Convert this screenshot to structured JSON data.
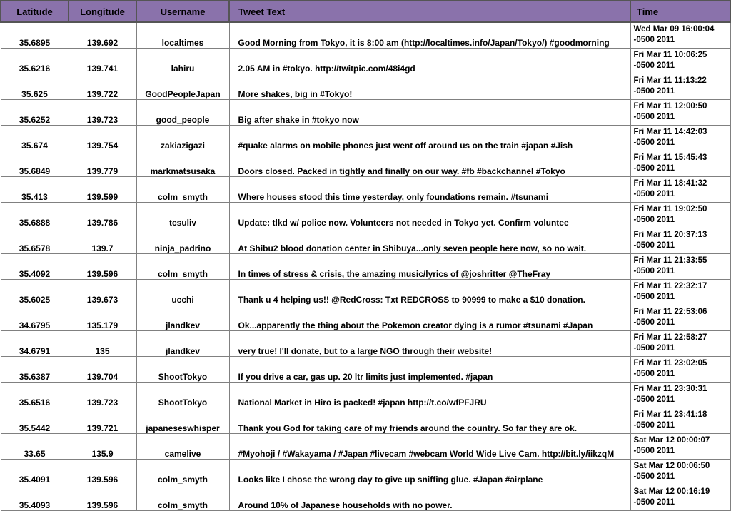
{
  "header_bg": "#8a72ab",
  "columns": [
    {
      "key": "lat",
      "label": "Latitude",
      "class": "col-lat"
    },
    {
      "key": "lon",
      "label": "Longitude",
      "class": "col-lon"
    },
    {
      "key": "user",
      "label": "Username",
      "class": "col-user"
    },
    {
      "key": "tweet",
      "label": "Tweet Text",
      "class": "col-tweet"
    },
    {
      "key": "time",
      "label": "Time",
      "class": "col-time"
    }
  ],
  "rows": [
    {
      "lat": "35.6895",
      "lon": "139.692",
      "user": "localtimes",
      "tweet": "Good Morning from Tokyo, it is 8:00 am (http://localtimes.info/Japan/Tokyo/) #goodmorning",
      "time": "Wed Mar 09 16:00:04 -0500 2011"
    },
    {
      "lat": "35.6216",
      "lon": "139.741",
      "user": "lahiru",
      "tweet": "2.05 AM in #tokyo. http://twitpic.com/48i4gd",
      "time": "Fri Mar 11 10:06:25 -0500 2011"
    },
    {
      "lat": "35.625",
      "lon": "139.722",
      "user": "GoodPeopleJapan",
      "tweet": "More shakes, big in #Tokyo!",
      "time": "Fri Mar 11 11:13:22 -0500 2011"
    },
    {
      "lat": "35.6252",
      "lon": "139.723",
      "user": "good_people",
      "tweet": "Big after shake in #tokyo now",
      "time": "Fri Mar 11 12:00:50 -0500 2011"
    },
    {
      "lat": "35.674",
      "lon": "139.754",
      "user": "zakiazigazi",
      "tweet": "#quake alarms on mobile phones just went off around us on the train #japan #Jish",
      "time": "Fri Mar 11 14:42:03 -0500 2011"
    },
    {
      "lat": "35.6849",
      "lon": "139.779",
      "user": "markmatsusaka",
      "tweet": "Doors closed. Packed in tightly and finally on our way.  #fb #backchannel #Tokyo",
      "time": "Fri Mar 11 15:45:43 -0500 2011"
    },
    {
      "lat": "35.413",
      "lon": "139.599",
      "user": "colm_smyth",
      "tweet": "Where houses stood this time yesterday, only foundations remain. #tsunami",
      "time": "Fri Mar 11 18:41:32 -0500 2011"
    },
    {
      "lat": "35.6888",
      "lon": "139.786",
      "user": "tcsuliv",
      "tweet": "Update: tlkd w/ police now. Volunteers not needed in Tokyo yet. Confirm voluntee",
      "time": "Fri Mar 11 19:02:50 -0500 2011"
    },
    {
      "lat": "35.6578",
      "lon": "139.7",
      "user": "ninja_padrino",
      "tweet": "At Shibu2 blood donation center in Shibuya...only seven people here now, so no wait.",
      "time": "Fri Mar 11 20:37:13 -0500 2011"
    },
    {
      "lat": "35.4092",
      "lon": "139.596",
      "user": "colm_smyth",
      "tweet": "In times of stress & crisis, the amazing music/lyrics of @joshritter @TheFray",
      "time": "Fri Mar 11 21:33:55 -0500 2011"
    },
    {
      "lat": "35.6025",
      "lon": "139.673",
      "user": "ucchi",
      "tweet": "Thank u 4 helping us!! @RedCross: Txt REDCROSS to 90999 to make a $10 donation.",
      "time": "Fri Mar 11 22:32:17 -0500 2011"
    },
    {
      "lat": "34.6795",
      "lon": "135.179",
      "user": "jlandkev",
      "tweet": "Ok...apparently the thing about the Pokemon creator dying is a rumor #tsunami #Japan",
      "time": "Fri Mar 11 22:53:06 -0500 2011"
    },
    {
      "lat": "34.6791",
      "lon": "135",
      "user": "jlandkev",
      "tweet": "very true! I'll donate, but to a large NGO through their website!",
      "time": "Fri Mar 11 22:58:27 -0500 2011"
    },
    {
      "lat": "35.6387",
      "lon": "139.704",
      "user": "ShootTokyo",
      "tweet": "If you drive a car, gas up.  20 ltr limits just implemented.  #japan",
      "time": "Fri Mar 11 23:02:05 -0500 2011"
    },
    {
      "lat": "35.6516",
      "lon": "139.723",
      "user": "ShootTokyo",
      "tweet": "National Market in Hiro is packed!  #japan http://t.co/wfPFJRU",
      "time": "Fri Mar 11 23:30:31 -0500 2011"
    },
    {
      "lat": "35.5442",
      "lon": "139.721",
      "user": "japaneseswhisper",
      "tweet": "Thank you God for taking care of my friends around the country. So far they are ok.",
      "time": "Fri Mar 11 23:41:18 -0500 2011"
    },
    {
      "lat": "33.65",
      "lon": "135.9",
      "user": "camelive",
      "tweet": "#Myohoji / #Wakayama / #Japan #livecam #webcam World Wide Live Cam. http://bit.ly/iikzqM",
      "time": "Sat Mar 12 00:00:07 -0500 2011"
    },
    {
      "lat": "35.4091",
      "lon": "139.596",
      "user": "colm_smyth",
      "tweet": "Looks like I chose the wrong day to give up sniffing glue. #Japan #airplane",
      "time": "Sat Mar 12 00:06:50 -0500 2011"
    },
    {
      "lat": "35.4093",
      "lon": "139.596",
      "user": "colm_smyth",
      "tweet": "Around 10% of Japanese households with no power.",
      "time": "Sat Mar 12 00:16:19 -0500 2011"
    }
  ]
}
